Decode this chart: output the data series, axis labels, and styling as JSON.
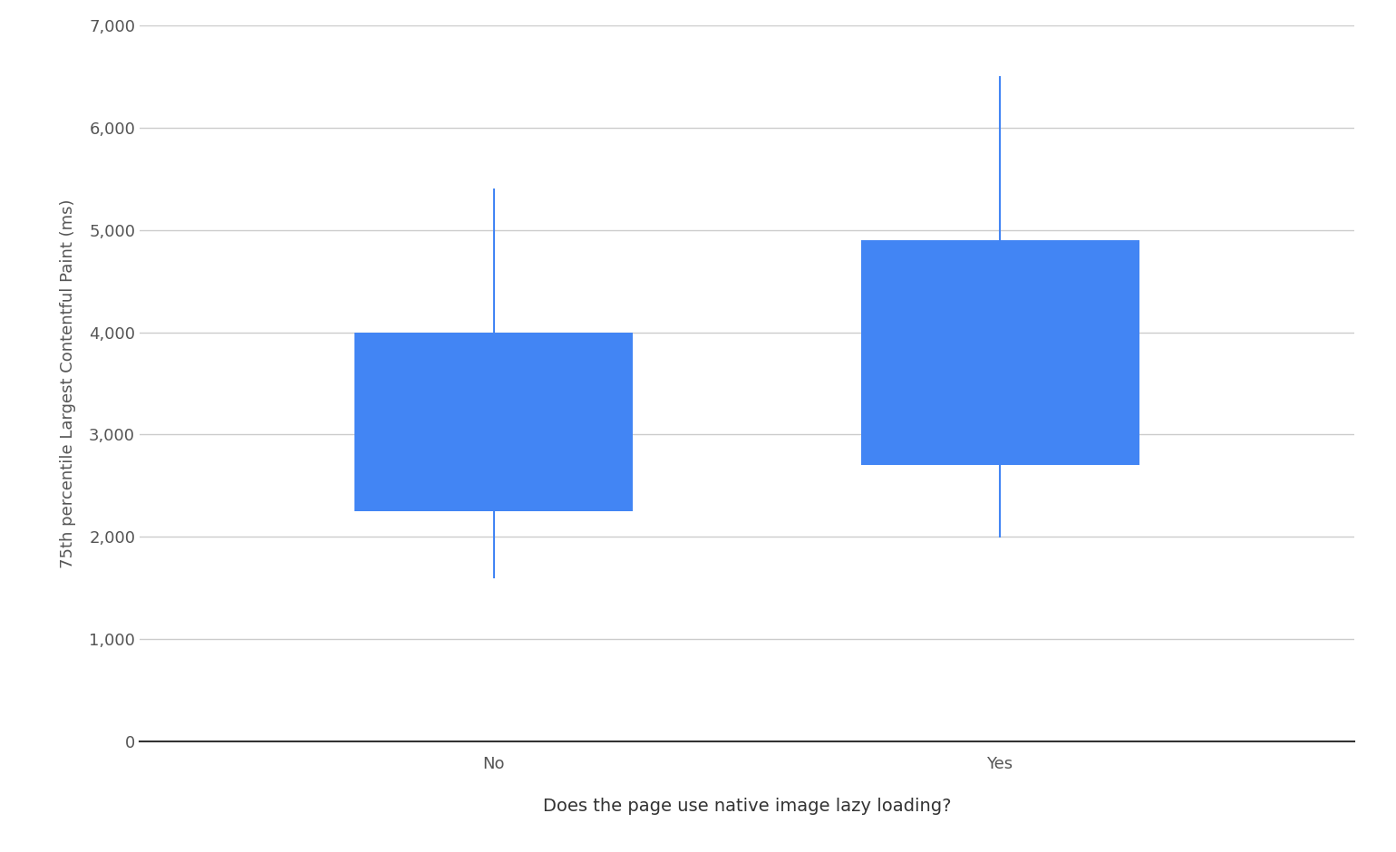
{
  "categories": [
    "No",
    "Yes"
  ],
  "box_data": [
    {
      "p10": 1600,
      "p25": 2250,
      "p75": 4000,
      "p90": 5400
    },
    {
      "p10": 2000,
      "p25": 2700,
      "p75": 4900,
      "p90": 6500
    }
  ],
  "box_color": "#4285F4",
  "whisker_color": "#4285F4",
  "whisker_linewidth": 1.5,
  "ylabel": "75th percentile Largest Contentful Paint (ms)",
  "xlabel": "Does the page use native image lazy loading?",
  "ylim": [
    0,
    7000
  ],
  "yticks": [
    0,
    1000,
    2000,
    3000,
    4000,
    5000,
    6000,
    7000
  ],
  "ytick_labels": [
    "0",
    "1,000",
    "2,000",
    "3,000",
    "4,000",
    "5,000",
    "6,000",
    "7,000"
  ],
  "background_color": "#ffffff",
  "grid_color": "#cccccc",
  "box_width": 0.55,
  "x_positions": [
    1.0,
    2.0
  ],
  "xlim": [
    0.3,
    2.7
  ],
  "ylabel_fontsize": 13,
  "xlabel_fontsize": 14,
  "tick_fontsize": 13,
  "ylabel_color": "#555555",
  "xlabel_color": "#333333",
  "tick_color": "#555555"
}
